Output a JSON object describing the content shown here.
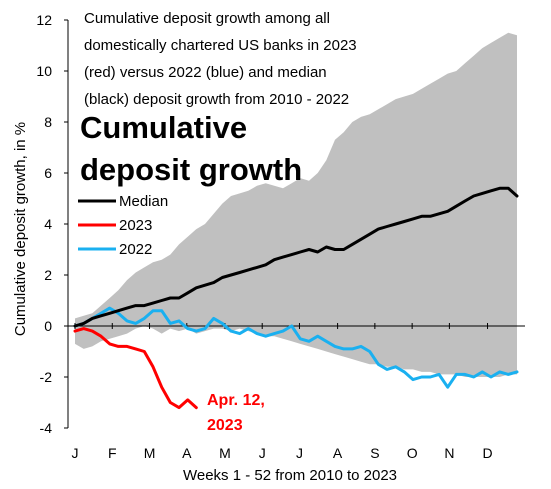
{
  "chart_data": {
    "type": "line",
    "note_lines": [
      "Cumulative deposit growth among all",
      "domestically chartered US banks in 2023",
      "(red) versus 2022 (blue) and median",
      "(black) deposit growth from 2010 - 2022"
    ],
    "title_lines": [
      "Cumulative",
      "deposit growth"
    ],
    "ylabel": "Cumulative deposit growth, in %",
    "xlabel": "Weeks 1 - 52 from 2010 to 2023",
    "ylim": [
      -4,
      12
    ],
    "yticks": [
      -4,
      -2,
      0,
      2,
      4,
      6,
      8,
      10,
      12
    ],
    "xlim": [
      1,
      52
    ],
    "month_labels": [
      {
        "label": "J",
        "week": 1
      },
      {
        "label": "F",
        "week": 5.3
      },
      {
        "label": "M",
        "week": 9.6
      },
      {
        "label": "A",
        "week": 13.9
      },
      {
        "label": "M",
        "week": 18.3
      },
      {
        "label": "J",
        "week": 22.6
      },
      {
        "label": "J",
        "week": 26.9
      },
      {
        "label": "A",
        "week": 31.3
      },
      {
        "label": "S",
        "week": 35.6
      },
      {
        "label": "O",
        "week": 39.9
      },
      {
        "label": "N",
        "week": 44.2
      },
      {
        "label": "D",
        "week": 48.6
      }
    ],
    "range_band": {
      "name": "Range 2010-2022",
      "color": "#c0c0c0",
      "weeks": [
        1,
        2,
        3,
        4,
        5,
        6,
        7,
        8,
        9,
        10,
        11,
        12,
        13,
        14,
        15,
        16,
        17,
        18,
        19,
        20,
        21,
        22,
        23,
        24,
        25,
        26,
        27,
        28,
        29,
        30,
        31,
        32,
        33,
        34,
        35,
        36,
        37,
        38,
        39,
        40,
        41,
        42,
        43,
        44,
        45,
        46,
        47,
        48,
        49,
        50,
        51,
        52
      ],
      "upper": [
        0.3,
        0.4,
        0.5,
        0.8,
        1.1,
        1.4,
        1.8,
        2.1,
        2.3,
        2.5,
        2.6,
        2.8,
        3.2,
        3.5,
        3.8,
        4.0,
        4.4,
        4.8,
        5.1,
        5.2,
        5.3,
        5.5,
        5.6,
        5.5,
        5.4,
        5.6,
        5.8,
        5.7,
        6.0,
        6.5,
        7.3,
        7.6,
        8.0,
        8.2,
        8.3,
        8.5,
        8.7,
        8.9,
        9.0,
        9.1,
        9.3,
        9.5,
        9.7,
        9.9,
        10.0,
        10.3,
        10.6,
        10.9,
        11.1,
        11.3,
        11.5,
        11.4
      ],
      "lower": [
        -0.7,
        -0.9,
        -0.8,
        -0.6,
        -0.5,
        -0.4,
        -0.3,
        -0.1,
        0.0,
        -0.1,
        -0.3,
        -0.1,
        -0.2,
        -0.1,
        -0.3,
        -0.2,
        -0.1,
        -0.1,
        -0.2,
        -0.1,
        -0.2,
        -0.3,
        -0.4,
        -0.4,
        -0.5,
        -0.6,
        -0.7,
        -0.8,
        -0.9,
        -1.0,
        -1.1,
        -1.2,
        -1.3,
        -1.4,
        -1.5,
        -1.5,
        -1.6,
        -1.6,
        -1.7,
        -1.7,
        -1.8,
        -1.8,
        -1.9,
        -1.9,
        -1.9,
        -2.0,
        -2.0,
        -2.0,
        -2.0,
        -2.0,
        -1.9,
        -1.9
      ]
    },
    "series": [
      {
        "name": "Median",
        "color": "#000000",
        "x": [
          1,
          2,
          3,
          4,
          5,
          6,
          7,
          8,
          9,
          10,
          11,
          12,
          13,
          14,
          15,
          16,
          17,
          18,
          19,
          20,
          21,
          22,
          23,
          24,
          25,
          26,
          27,
          28,
          29,
          30,
          31,
          32,
          33,
          34,
          35,
          36,
          37,
          38,
          39,
          40,
          41,
          42,
          43,
          44,
          45,
          46,
          47,
          48,
          49,
          50,
          51,
          52
        ],
        "y": [
          0.0,
          0.1,
          0.3,
          0.4,
          0.5,
          0.6,
          0.7,
          0.8,
          0.8,
          0.9,
          1.0,
          1.1,
          1.1,
          1.3,
          1.5,
          1.6,
          1.7,
          1.9,
          2.0,
          2.1,
          2.2,
          2.3,
          2.4,
          2.6,
          2.7,
          2.8,
          2.9,
          3.0,
          2.9,
          3.1,
          3.0,
          3.0,
          3.2,
          3.4,
          3.6,
          3.8,
          3.9,
          4.0,
          4.1,
          4.2,
          4.3,
          4.3,
          4.4,
          4.5,
          4.7,
          4.9,
          5.1,
          5.2,
          5.3,
          5.4,
          5.4,
          5.1
        ]
      },
      {
        "name": "2023",
        "color": "#ff0000",
        "x": [
          1,
          2,
          3,
          4,
          5,
          6,
          7,
          8,
          9,
          10,
          11,
          12,
          13,
          14,
          15
        ],
        "y": [
          -0.2,
          -0.1,
          -0.2,
          -0.4,
          -0.7,
          -0.8,
          -0.8,
          -0.9,
          -1.0,
          -1.6,
          -2.4,
          -3.0,
          -3.2,
          -2.9,
          -3.2
        ]
      },
      {
        "name": "2022",
        "color": "#1ab0f0",
        "x": [
          1,
          2,
          3,
          4,
          5,
          6,
          7,
          8,
          9,
          10,
          11,
          12,
          13,
          14,
          15,
          16,
          17,
          18,
          19,
          20,
          21,
          22,
          23,
          24,
          25,
          26,
          27,
          28,
          29,
          30,
          31,
          32,
          33,
          34,
          35,
          36,
          37,
          38,
          39,
          40,
          41,
          42,
          43,
          44,
          45,
          46,
          47,
          48,
          49,
          50,
          51,
          52
        ],
        "y": [
          0.0,
          0.1,
          0.3,
          0.5,
          0.7,
          0.5,
          0.2,
          0.1,
          0.3,
          0.6,
          0.6,
          0.1,
          0.2,
          -0.1,
          -0.2,
          -0.1,
          0.3,
          0.1,
          -0.2,
          -0.3,
          -0.1,
          -0.3,
          -0.4,
          -0.3,
          -0.2,
          0.0,
          -0.5,
          -0.6,
          -0.4,
          -0.6,
          -0.8,
          -0.9,
          -0.9,
          -0.8,
          -1.0,
          -1.5,
          -1.7,
          -1.6,
          -1.8,
          -2.1,
          -2.0,
          -2.0,
          -1.9,
          -2.4,
          -1.9,
          -1.9,
          -2.0,
          -1.8,
          -2.0,
          -1.8,
          -1.9,
          -1.8
        ]
      }
    ],
    "annotation": {
      "lines": [
        "Apr. 12,",
        "2023"
      ],
      "color": "#ff0000"
    }
  }
}
